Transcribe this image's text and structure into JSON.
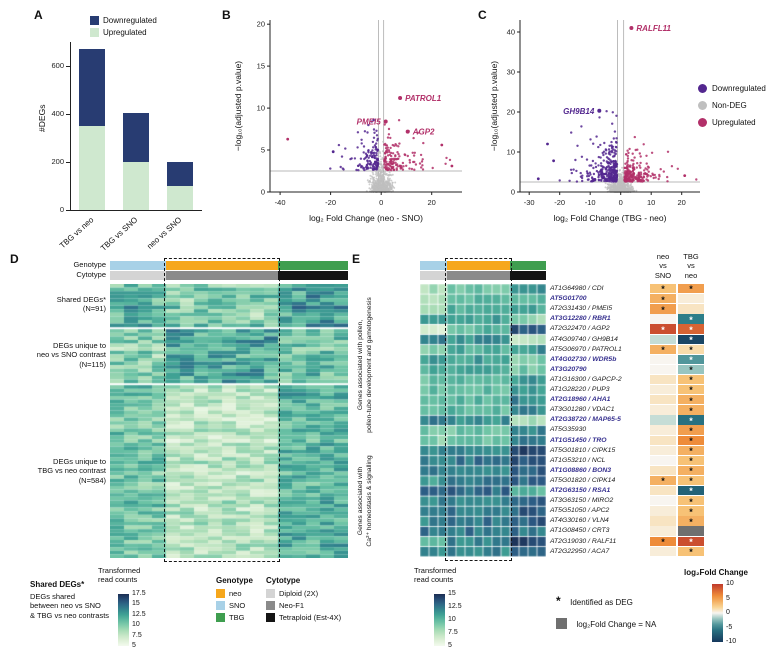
{
  "labels": {
    "panelA": "A",
    "panelB": "B",
    "panelC": "C",
    "panelD": "D",
    "panelE": "E",
    "genotype": "Genotype",
    "cytotype": "Cytotype"
  },
  "chart_data": [
    {
      "id": "A",
      "type": "bar",
      "stacked": true,
      "ylabel": "#DEGs",
      "ylim": [
        0,
        700
      ],
      "yticks": [
        0,
        200,
        400,
        600
      ],
      "categories": [
        "TBG vs neo",
        "TBG vs SNO",
        "neo vs SNO"
      ],
      "series": [
        {
          "name": "Downregulated",
          "color": "#283c72",
          "values": [
            320,
            205,
            100
          ]
        },
        {
          "name": "Upregulated",
          "color": "#cfe8cf",
          "values": [
            350,
            200,
            100
          ]
        }
      ]
    },
    {
      "id": "B",
      "type": "scatter",
      "subtype": "volcano",
      "xlabel": "log₂ Fold Change (neo - SNO)",
      "ylabel": "−log₁₀(adjusted p.value)",
      "xlim": [
        -44,
        32
      ],
      "ylim": [
        0,
        20.5
      ],
      "xticks": [
        -40,
        -20,
        0,
        20
      ],
      "yticks": [
        0,
        5,
        10,
        15,
        20
      ],
      "fc_threshold": 1,
      "p_threshold": 2.5,
      "n_nondeg": 620,
      "n_down": 130,
      "n_up": 140,
      "seed": 7,
      "gen": {
        "graySpread": 3.5,
        "downXSpread": 4,
        "upXSpread": 4.5,
        "downYSpread": 1.6,
        "upYSpread": 1.7,
        "downYmax": 9,
        "upYmax": 12
      },
      "labeled_points": [
        {
          "gene": "PATROL1",
          "x": 7.5,
          "y": 11.2,
          "dir": "up",
          "anchor": "start"
        },
        {
          "gene": "PMEI5",
          "x": 1.8,
          "y": 8.4,
          "dir": "up",
          "anchor": "end"
        },
        {
          "gene": "AGP2",
          "x": 10.5,
          "y": 7.2,
          "dir": "up",
          "anchor": "start"
        }
      ],
      "extra_points": [
        {
          "x": -37,
          "y": 6.3,
          "dir": "up"
        },
        {
          "x": 24,
          "y": 5.6,
          "dir": "up"
        },
        {
          "x": 28,
          "y": 3.1,
          "dir": "up"
        },
        {
          "x": -19,
          "y": 4.8,
          "dir": "down"
        }
      ]
    },
    {
      "id": "C",
      "type": "scatter",
      "subtype": "volcano",
      "xlabel": "log₂ Fold Change (TBG - neo)",
      "ylabel": "−log₁₀(adjusted p.value)",
      "xlim": [
        -33,
        26
      ],
      "ylim": [
        0,
        43
      ],
      "xticks": [
        -30,
        -20,
        -10,
        0,
        10,
        20
      ],
      "yticks": [
        0,
        10,
        20,
        30,
        40
      ],
      "fc_threshold": 1,
      "p_threshold": 2.5,
      "n_nondeg": 650,
      "n_down": 300,
      "n_up": 220,
      "seed": 11,
      "gen": {
        "graySpread": 3.2,
        "downXSpread": 3.5,
        "upXSpread": 3.5,
        "downYSpread": 3.0,
        "upYSpread": 2.0,
        "downYmax": 26,
        "upYmax": 15
      },
      "labeled_points": [
        {
          "gene": "RALFL11",
          "x": 3.5,
          "y": 41,
          "dir": "up",
          "anchor": "start"
        },
        {
          "gene": "GH9B14",
          "x": -7,
          "y": 20.3,
          "dir": "down",
          "anchor": "end"
        }
      ],
      "extra_points": [
        {
          "x": -27,
          "y": 3.3,
          "dir": "down"
        },
        {
          "x": -22,
          "y": 7.8,
          "dir": "down"
        },
        {
          "x": 21,
          "y": 4.1,
          "dir": "up"
        },
        {
          "x": -24,
          "y": 12,
          "dir": "down"
        }
      ]
    },
    {
      "id": "D",
      "type": "heatmap",
      "colorbar": {
        "title": "Transformed\nread counts",
        "vmin": 5,
        "vmax": 17.5
      },
      "col_blocks": [
        {
          "genotype": "SNO",
          "cytotype": "Diploid (2X)",
          "cols": 4
        },
        {
          "genotype": "neo",
          "cytotype": "Neo-F1",
          "cols": 8,
          "highlight": true
        },
        {
          "genotype": "TBG",
          "cytotype": "Tetraploid (Est-4X)",
          "cols": 5
        }
      ],
      "row_groups": [
        {
          "label": "Shared DEGs*\n(N=91)",
          "n": 91,
          "display_rows": 12,
          "base": [
            11.5,
            10,
            12.5
          ],
          "jitter": 2.4
        },
        {
          "label": "DEGs unique to\nneo vs SNO contrast\n(N=115)",
          "n": 115,
          "display_rows": 15,
          "base": [
            9.5,
            12,
            10.5
          ],
          "jitter": 2.4
        },
        {
          "label": "DEGs unique to\nTBG vs neo contrast\n(N=584)",
          "n": 584,
          "display_rows": 48,
          "base": [
            10.5,
            8,
            11.5
          ],
          "jitter": 1.9
        }
      ]
    },
    {
      "id": "E",
      "type": "heatmap",
      "colorbar": {
        "title": "Transformed\nread counts",
        "vmin": 5,
        "vmax": 15
      },
      "col_blocks": [
        {
          "genotype": "SNO",
          "cytotype": "Diploid (2X)",
          "cols": 3
        },
        {
          "genotype": "neo",
          "cytotype": "Neo-F1",
          "cols": 7,
          "highlight": true
        },
        {
          "genotype": "TBG",
          "cytotype": "Tetraploid (Est-4X)",
          "cols": 4
        }
      ],
      "row_group_labels": [
        "Genes associated with pollen,\npollen-tube development and gametogenesis",
        "Genes associated with\nCa²⁺ homeostasis & signalling"
      ],
      "fold_change": {
        "columns": [
          "neo\nvs\nSNO",
          "TBG\nvs\nneo"
        ]
      },
      "genes": [
        {
          "label": "AT1G64980 / CDI",
          "bold": false,
          "group": 0,
          "counts": [
            8,
            9.5,
            12
          ],
          "fc": [
            3,
            5
          ],
          "deg": [
            true,
            true
          ]
        },
        {
          "label": "AT5G01700",
          "bold": true,
          "group": 0,
          "counts": [
            8,
            10,
            10
          ],
          "fc": [
            4,
            0.5
          ],
          "deg": [
            true,
            false
          ]
        },
        {
          "label": "AT2G31430 / PMEI5",
          "bold": false,
          "group": 0,
          "counts": [
            7.5,
            10.5,
            11
          ],
          "fc": [
            5,
            1
          ],
          "deg": [
            true,
            false
          ]
        },
        {
          "label": "AT3G12280 / RBR1",
          "bold": true,
          "group": 0,
          "counts": [
            11,
            11,
            8.5
          ],
          "fc": [
            0,
            -5
          ],
          "deg": [
            false,
            true
          ]
        },
        {
          "label": "AT2G22470 / AGP2",
          "bold": false,
          "group": 0,
          "counts": [
            6,
            10,
            13.5
          ],
          "fc": [
            9,
            8
          ],
          "deg": [
            true,
            true
          ]
        },
        {
          "label": "AT4G09740 / GH9B14",
          "bold": false,
          "group": 0,
          "counts": [
            12,
            11.5,
            7
          ],
          "fc": [
            -1,
            -9
          ],
          "deg": [
            false,
            true
          ]
        },
        {
          "label": "AT5G06970 / PATROL1",
          "bold": false,
          "group": 0,
          "counts": [
            8.5,
            10.5,
            11.5
          ],
          "fc": [
            4,
            1.5
          ],
          "deg": [
            true,
            true
          ]
        },
        {
          "label": "AT4G02730 / WDR5b",
          "bold": true,
          "group": 0,
          "counts": [
            11,
            11,
            9
          ],
          "fc": [
            0,
            -4
          ],
          "deg": [
            false,
            true
          ]
        },
        {
          "label": "AT3G20790",
          "bold": true,
          "group": 0,
          "counts": [
            10.5,
            10.5,
            9.5
          ],
          "fc": [
            0,
            -2
          ],
          "deg": [
            false,
            true
          ]
        },
        {
          "label": "AT1G16300 / GAPCP-2",
          "bold": false,
          "group": 0,
          "counts": [
            9.5,
            10,
            11.5
          ],
          "fc": [
            1,
            3
          ],
          "deg": [
            false,
            true
          ]
        },
        {
          "label": "AT1G28220 / PUP3",
          "bold": false,
          "group": 0,
          "counts": [
            10,
            10,
            11.5
          ],
          "fc": [
            0.5,
            3
          ],
          "deg": [
            false,
            true
          ]
        },
        {
          "label": "AT2G18960 / AHA1",
          "bold": true,
          "group": 0,
          "counts": [
            9.5,
            10,
            12
          ],
          "fc": [
            1,
            4
          ],
          "deg": [
            false,
            true
          ]
        },
        {
          "label": "AT3G01280 / VDAC1",
          "bold": false,
          "group": 0,
          "counts": [
            10,
            10,
            12
          ],
          "fc": [
            0.5,
            4
          ],
          "deg": [
            false,
            true
          ]
        },
        {
          "label": "AT2G38720 / MAP65-5",
          "bold": true,
          "group": 0,
          "counts": [
            12,
            11.5,
            8
          ],
          "fc": [
            -1,
            -6
          ],
          "deg": [
            false,
            true
          ]
        },
        {
          "label": "AT5G35930",
          "bold": false,
          "group": 0,
          "counts": [
            9.5,
            9.5,
            12
          ],
          "fc": [
            0.5,
            5
          ],
          "deg": [
            false,
            true
          ]
        },
        {
          "label": "AT1G51450 / TRO",
          "bold": true,
          "group": 0,
          "counts": [
            9,
            9.5,
            12.5
          ],
          "fc": [
            1,
            6
          ],
          "deg": [
            false,
            true
          ]
        },
        {
          "label": "AT5G01810 / CIPK15",
          "bold": false,
          "group": 1,
          "counts": [
            12,
            12,
            14
          ],
          "fc": [
            0.5,
            4
          ],
          "deg": [
            false,
            true
          ]
        },
        {
          "label": "AT1G53210 / NCL",
          "bold": false,
          "group": 1,
          "counts": [
            12.5,
            12.5,
            13.5
          ],
          "fc": [
            0,
            3
          ],
          "deg": [
            false,
            true
          ]
        },
        {
          "label": "AT1G08860 / BON3",
          "bold": true,
          "group": 1,
          "counts": [
            12,
            12,
            13.5
          ],
          "fc": [
            1,
            4
          ],
          "deg": [
            false,
            true
          ]
        },
        {
          "label": "AT5G01820 / CIPK14",
          "bold": false,
          "group": 1,
          "counts": [
            11,
            12.5,
            13
          ],
          "fc": [
            4,
            3
          ],
          "deg": [
            true,
            true
          ]
        },
        {
          "label": "AT2G63150 / RSA1",
          "bold": true,
          "group": 1,
          "counts": [
            13,
            13,
            10
          ],
          "fc": [
            1,
            -7
          ],
          "deg": [
            false,
            true
          ]
        },
        {
          "label": "AT3G63150 / MIRO2",
          "bold": false,
          "group": 1,
          "counts": [
            12,
            12,
            13.5
          ],
          "fc": [
            0,
            3
          ],
          "deg": [
            false,
            true
          ]
        },
        {
          "label": "AT5G51050 / APC2",
          "bold": false,
          "group": 1,
          "counts": [
            12.5,
            12.5,
            13.5
          ],
          "fc": [
            0.5,
            3
          ],
          "deg": [
            false,
            true
          ]
        },
        {
          "label": "AT4G30160 / VLN4",
          "bold": false,
          "group": 1,
          "counts": [
            12,
            12.5,
            13.5
          ],
          "fc": [
            1,
            4
          ],
          "deg": [
            false,
            true
          ]
        },
        {
          "label": "AT1G08450 / CRT3",
          "bold": false,
          "group": 1,
          "counts": [
            12.5,
            12.5,
            12.5
          ],
          "fc": [
            0.5,
            null
          ],
          "deg": [
            false,
            false
          ],
          "na": [
            false,
            true
          ]
        },
        {
          "label": "AT2G19030 / RALF11",
          "bold": false,
          "group": 1,
          "counts": [
            10,
            12,
            14.5
          ],
          "fc": [
            6,
            9
          ],
          "deg": [
            true,
            true
          ]
        },
        {
          "label": "AT2G22950 / ACA7",
          "bold": false,
          "group": 1,
          "counts": [
            12,
            12,
            13
          ],
          "fc": [
            0.5,
            3
          ],
          "deg": [
            false,
            true
          ]
        }
      ]
    }
  ],
  "legends": {
    "deg_scatter": [
      {
        "label": "Downregulated",
        "color": "#53278f"
      },
      {
        "label": "Non-DEG",
        "color": "#bfbfbf"
      },
      {
        "label": "Upregulated",
        "color": "#b23069"
      }
    ],
    "genotype": {
      "title": "Genotype",
      "items": [
        {
          "label": "neo",
          "color": "#f6a71c"
        },
        {
          "label": "SNO",
          "color": "#a8d1e7"
        },
        {
          "label": "TBG",
          "color": "#3f9e4f"
        }
      ]
    },
    "cytotype": {
      "title": "Cytotype",
      "items": [
        {
          "label": "Diploid (2X)",
          "color": "#d4d4d4"
        },
        {
          "label": "Neo-F1",
          "color": "#8a8a8a"
        },
        {
          "label": "Tetraploid (Est-4X)",
          "color": "#141414"
        }
      ]
    },
    "read_counts_d": {
      "title": "Transformed\nread counts",
      "ticks": [
        "17.5",
        "15",
        "12.5",
        "10",
        "7.5",
        "5"
      ],
      "vmin": 5,
      "vmax": 17.5
    },
    "read_counts_e": {
      "title": "Transformed\nread counts",
      "ticks": [
        "15",
        "12.5",
        "10",
        "7.5",
        "5"
      ],
      "vmin": 5,
      "vmax": 15
    },
    "shared_note": {
      "title": "Shared  DEGs*",
      "body": "DEGs shared\nbetween neo vs SNO\n& TBG vs neo contrasts"
    },
    "fc_scale": {
      "title": "log₂Fold Change",
      "ticks": [
        "10",
        "5",
        "0",
        "-5",
        "-10"
      ],
      "vmin": -10,
      "vmax": 10
    },
    "deg_note": {
      "star": "*",
      "text": "Identified as DEG"
    },
    "na_note": {
      "text": "log₂Fold Change = NA",
      "color": "#6f6f6f"
    }
  }
}
